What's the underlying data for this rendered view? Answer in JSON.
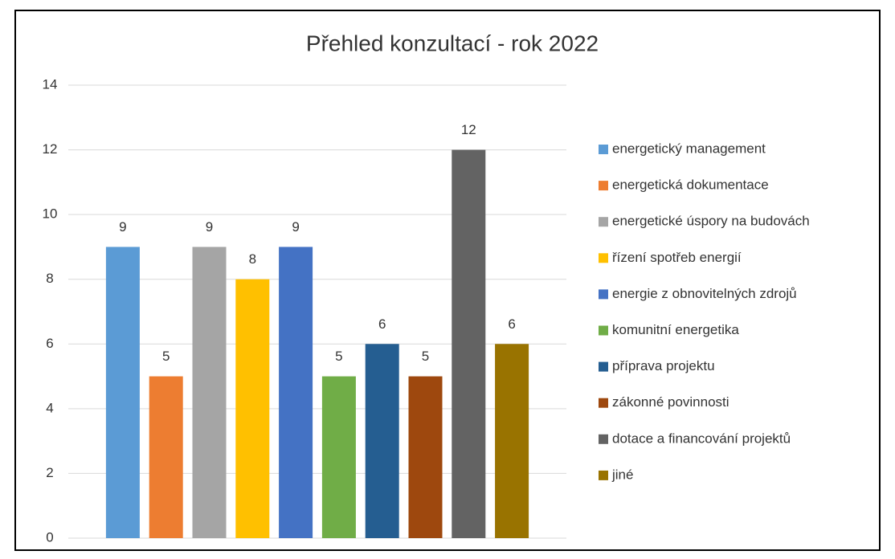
{
  "chart_data": {
    "type": "bar",
    "title": "Přehled konzultací - rok 2022",
    "categories": [
      null
    ],
    "series": [
      {
        "name": "energetický management",
        "color": "#5b9bd5",
        "values": [
          9
        ]
      },
      {
        "name": "energetická dokumentace",
        "color": "#ed7d31",
        "values": [
          5
        ]
      },
      {
        "name": "energetické úspory na budovách",
        "color": "#a5a5a5",
        "values": [
          9
        ]
      },
      {
        "name": "řízení spotřeb energií",
        "color": "#ffc000",
        "values": [
          8
        ]
      },
      {
        "name": "energie z obnovitelných zdrojů",
        "color": "#4472c4",
        "values": [
          9
        ]
      },
      {
        "name": "komunitní energetika",
        "color": "#70ad47",
        "values": [
          5
        ]
      },
      {
        "name": "příprava projektu",
        "color": "#255e91",
        "values": [
          6
        ]
      },
      {
        "name": "zákonné povinnosti",
        "color": "#9e480e",
        "values": [
          5
        ]
      },
      {
        "name": "dotace a financování projektů",
        "color": "#636363",
        "values": [
          12
        ]
      },
      {
        "name": "jiné",
        "color": "#997300",
        "values": [
          6
        ]
      }
    ],
    "ylim": [
      0,
      14
    ],
    "yticks": [
      0,
      2,
      4,
      6,
      8,
      10,
      12,
      14
    ],
    "grid": true,
    "legend": "right"
  }
}
